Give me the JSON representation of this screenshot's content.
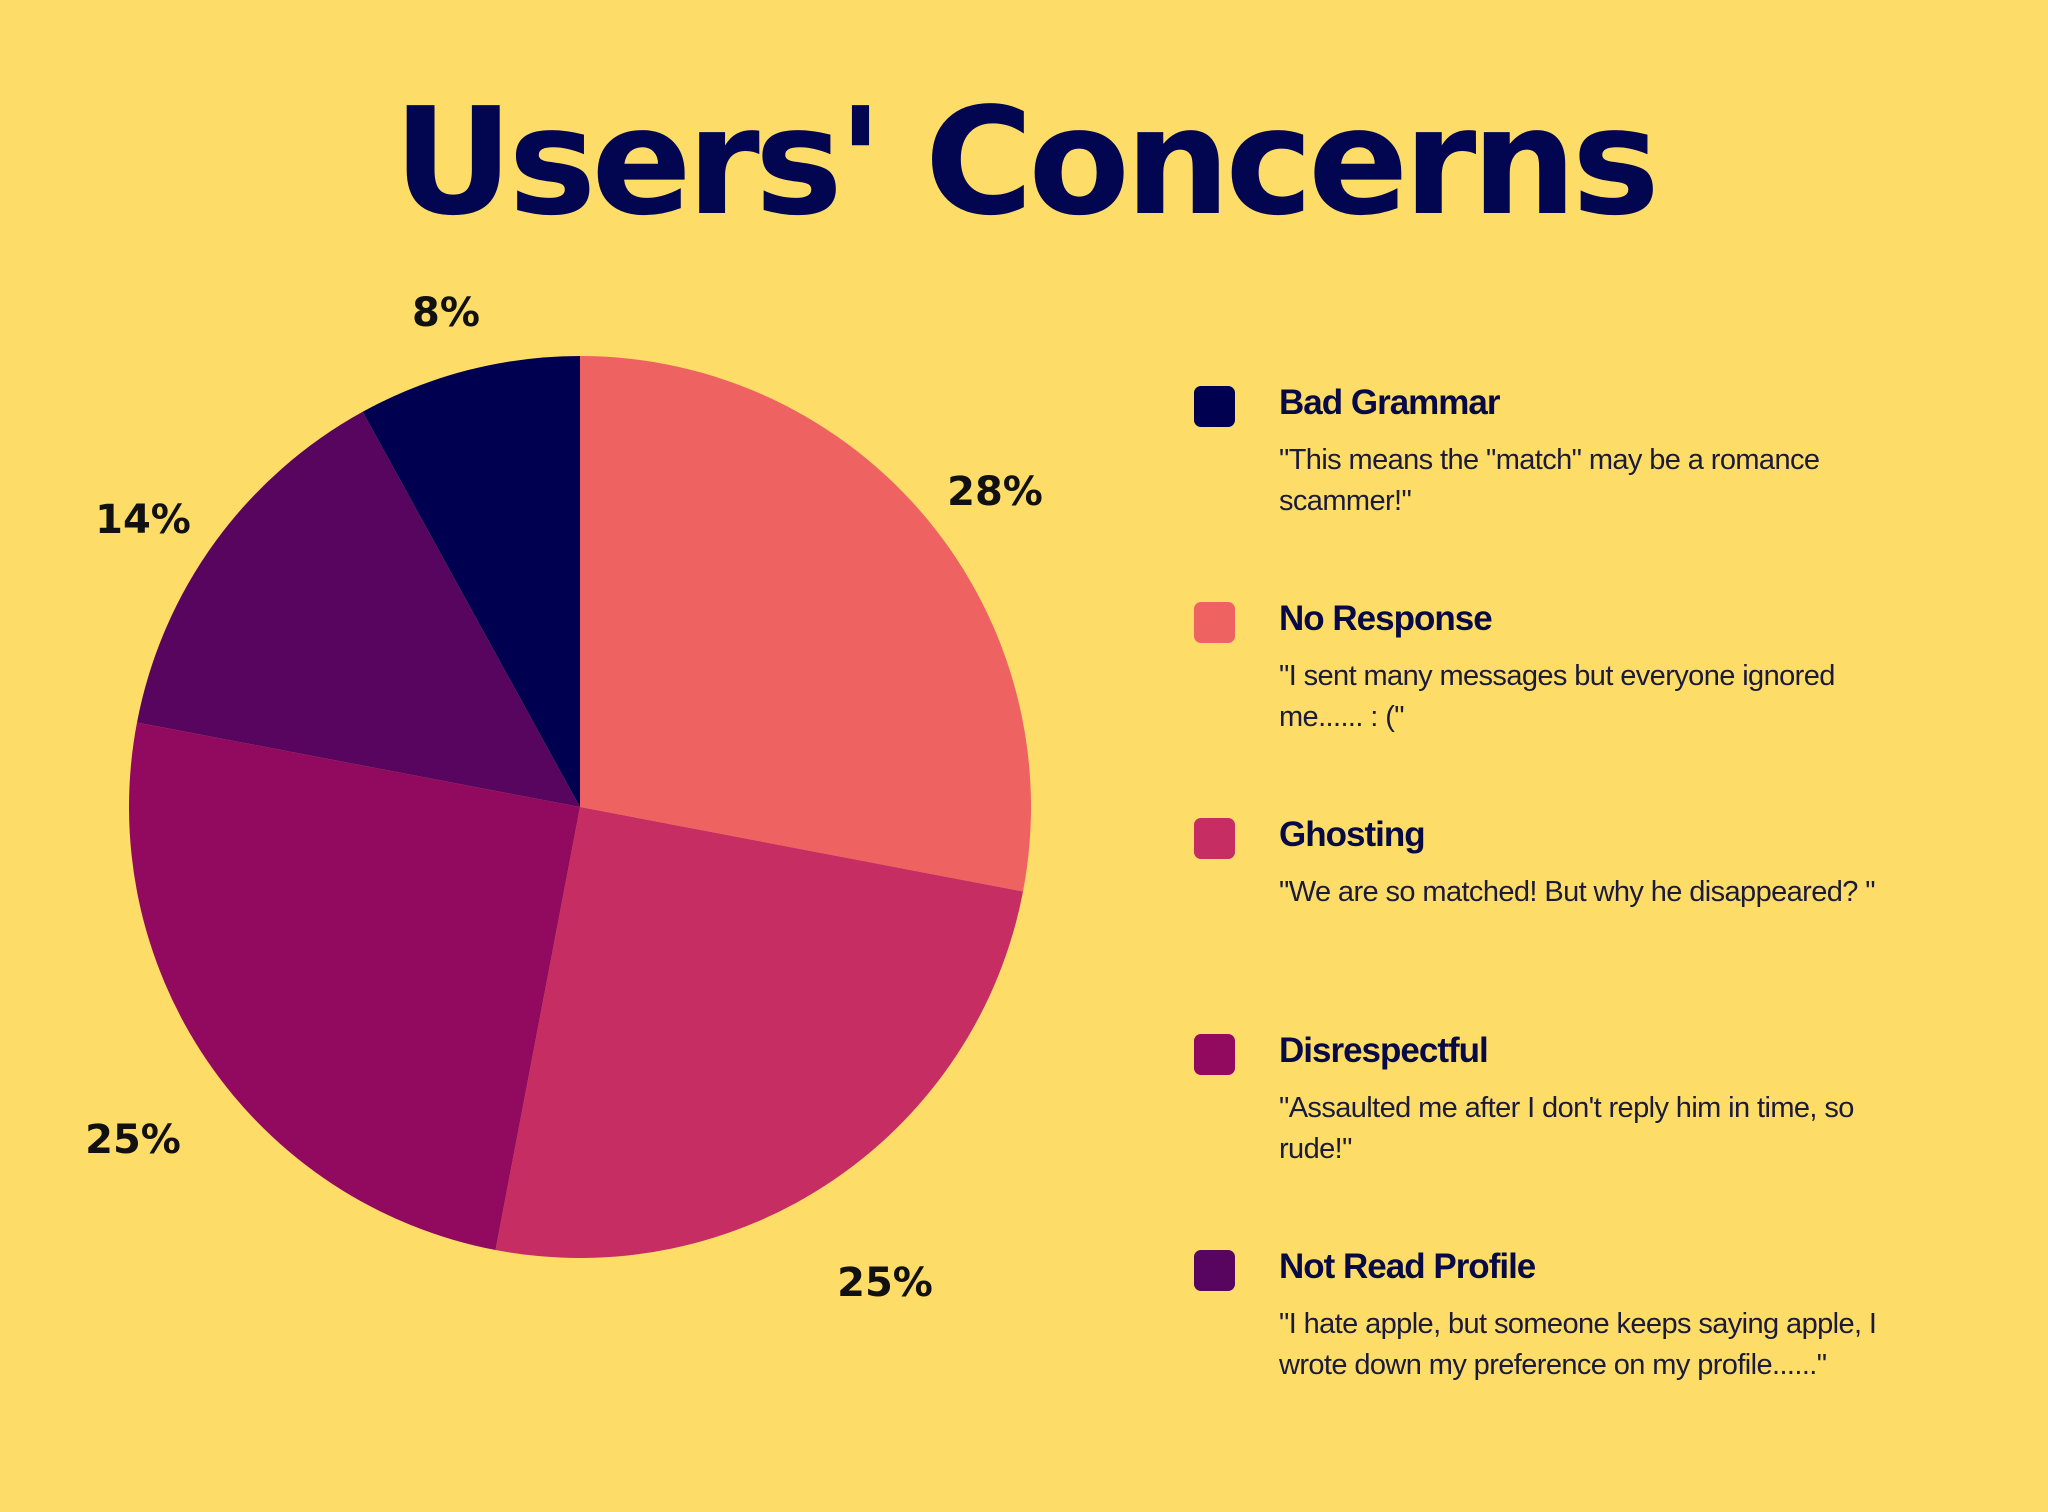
{
  "chart_data": {
    "type": "pie",
    "title": "Users' Concerns",
    "slices": [
      {
        "name": "No Response",
        "value": 28,
        "label": "28%",
        "color": "#EE6361"
      },
      {
        "name": "Ghosting",
        "value": 25,
        "label": "25%",
        "color": "#C52D63"
      },
      {
        "name": "Disrespectful",
        "value": 25,
        "label": "25%",
        "color": "#920A60"
      },
      {
        "name": "Not Read Profile",
        "value": 14,
        "label": "14%",
        "color": "#57055E"
      },
      {
        "name": "Bad Grammar",
        "value": 8,
        "label": "8%",
        "color": "#000050"
      }
    ]
  },
  "legend": {
    "items": [
      {
        "name": "Bad Grammar",
        "quote": "\"This means the \"match\" may be a romance scammer!\"",
        "color": "#000050"
      },
      {
        "name": "No Response",
        "quote": "\"I sent many messages but everyone ignored me...... : (\"",
        "color": "#EE6361"
      },
      {
        "name": "Ghosting",
        "quote": "\"We are so matched! But why he disappeared? \"",
        "color": "#C52D63"
      },
      {
        "name": "Disrespectful",
        "quote": "\"Assaulted me after I don't reply him in time, so rude!\"",
        "color": "#920A60"
      },
      {
        "name": "Not Read Profile",
        "quote": "\"I hate apple, but someone keeps saying apple, I wrote down my preference on my profile......\"",
        "color": "#57055E"
      }
    ]
  }
}
